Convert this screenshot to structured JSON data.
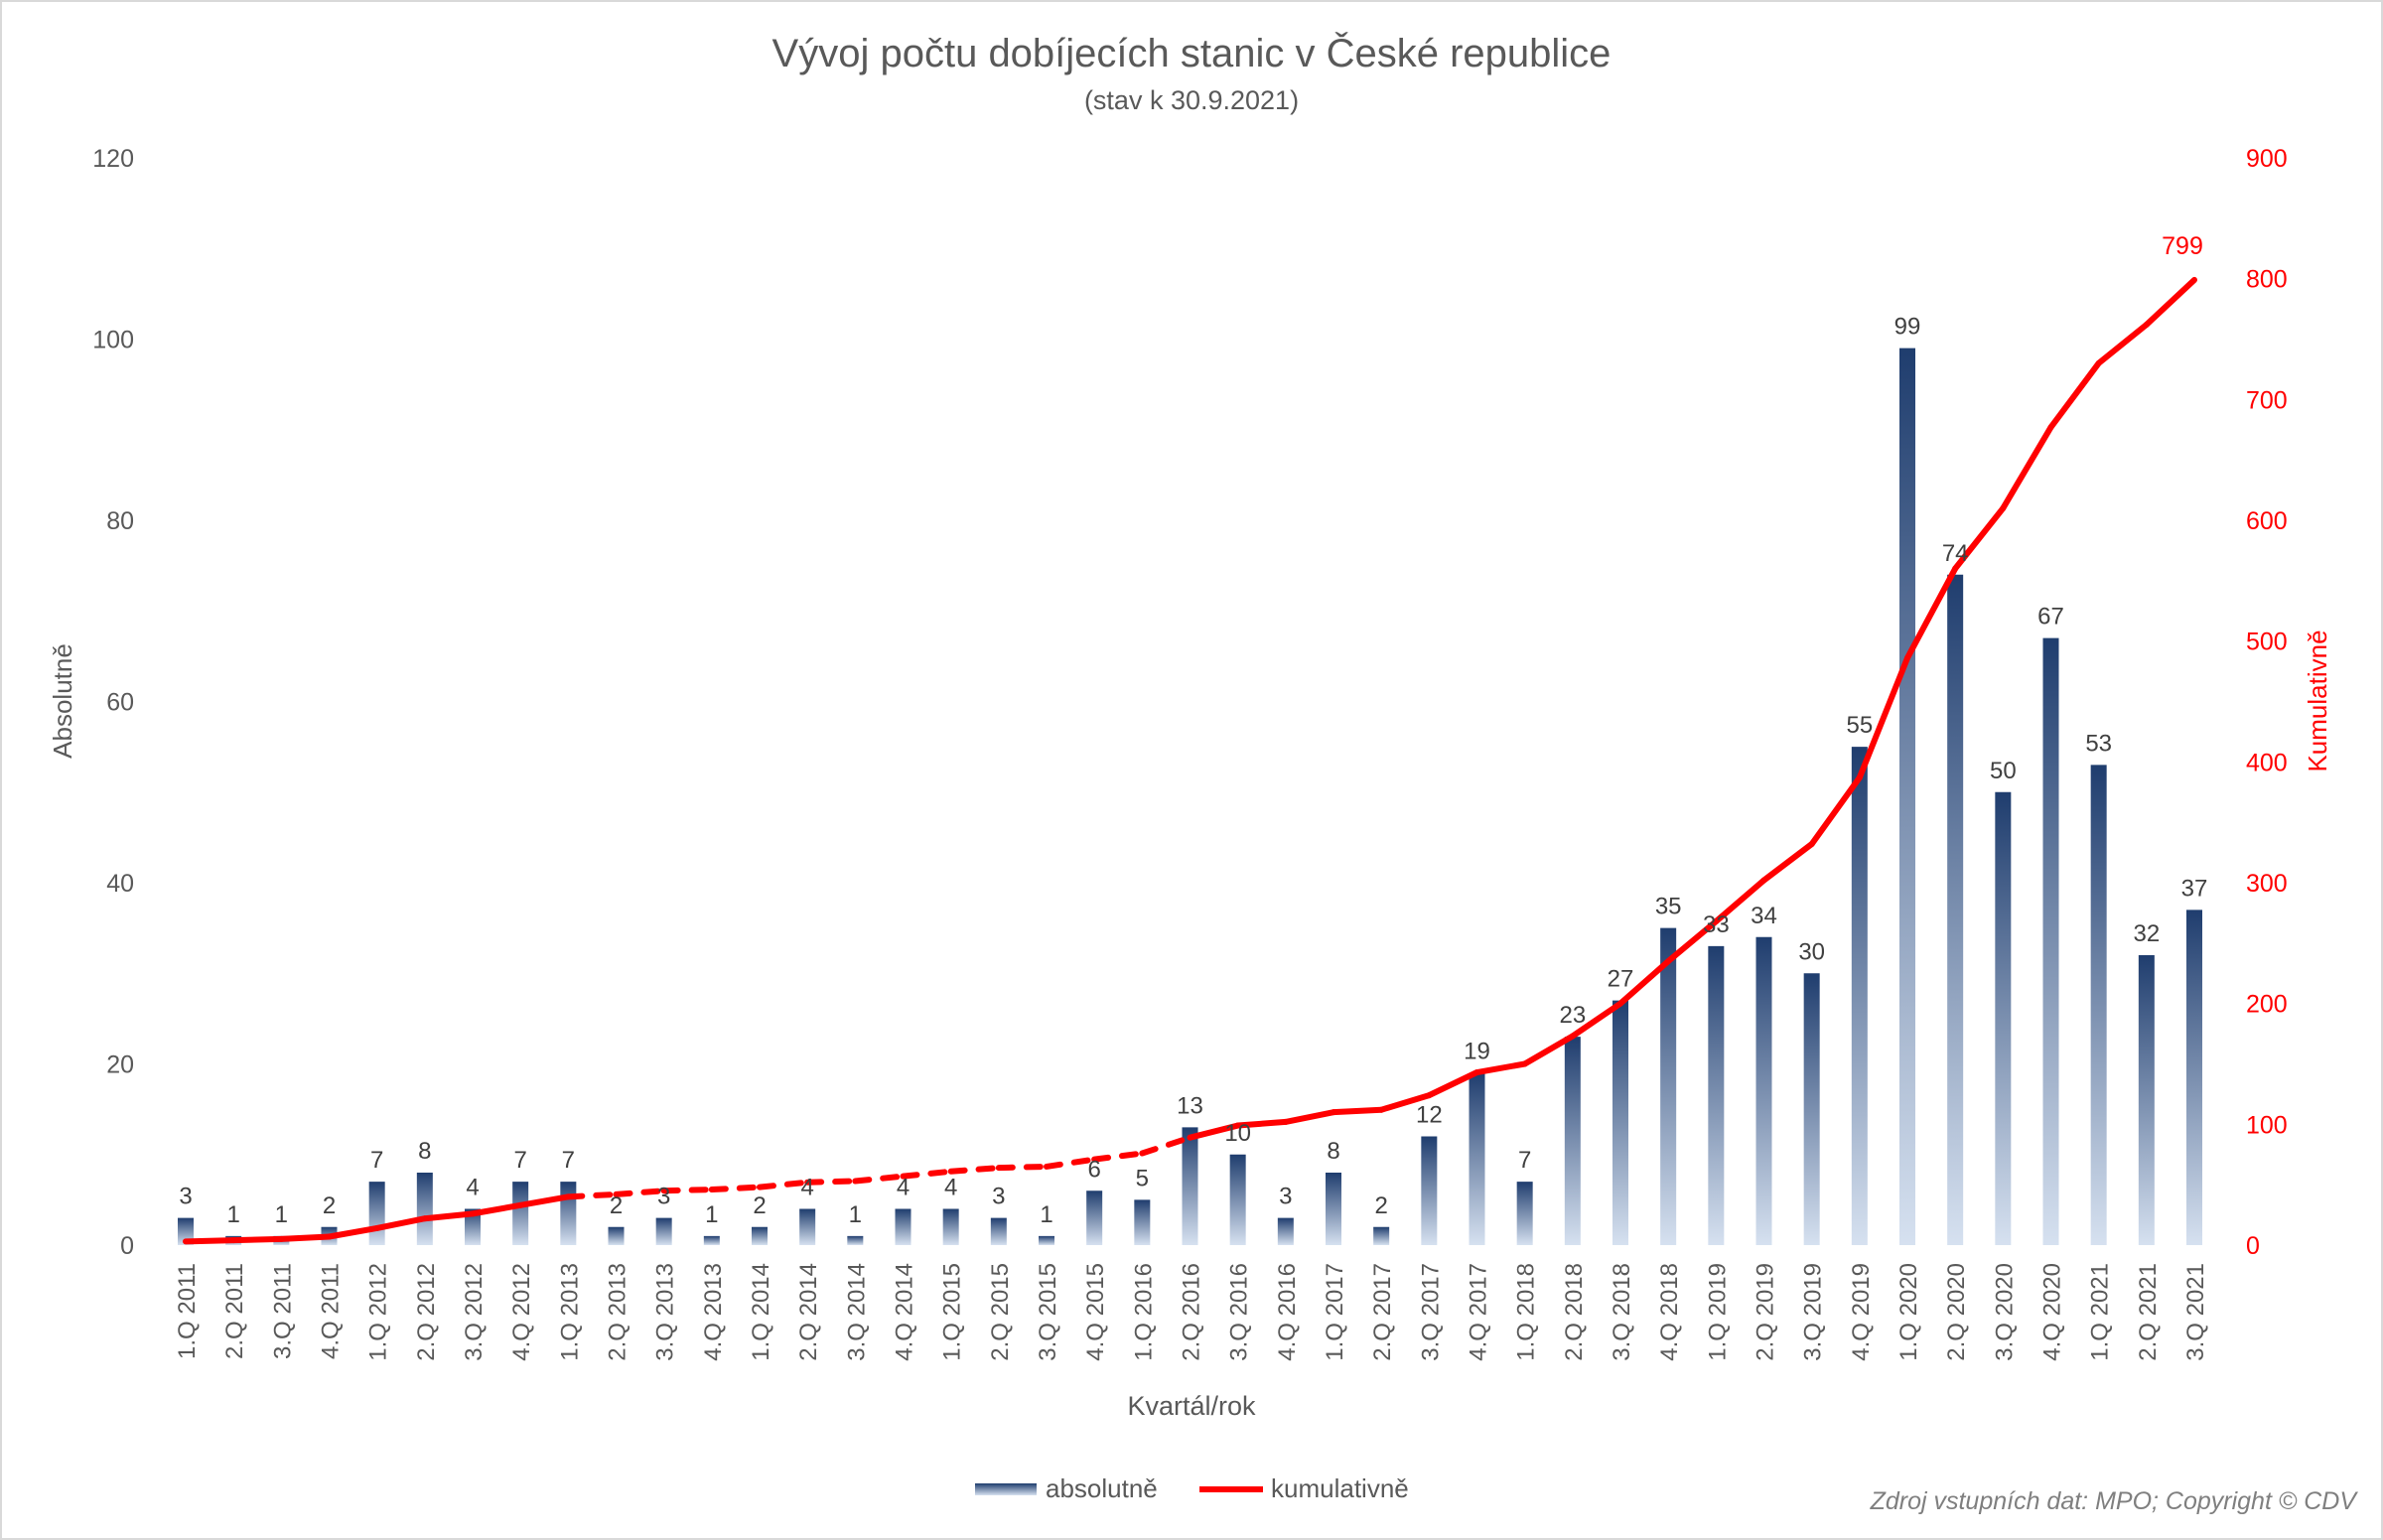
{
  "chart_data": {
    "type": "bar+line",
    "title": "Vývoj počtu dobíjecích stanic v České republice",
    "subtitle": "(stav k 30.9.2021)",
    "xlabel": "Kvartál/rok",
    "ylabel": "Absolutně",
    "y2label": "Kumulativně",
    "ylim": [
      0,
      120
    ],
    "y2lim": [
      0,
      900
    ],
    "yticks": [
      0,
      20,
      40,
      60,
      80,
      100,
      120
    ],
    "y2ticks": [
      0,
      100,
      200,
      300,
      400,
      500,
      600,
      700,
      800,
      900
    ],
    "categories": [
      "1.Q 2011",
      "2.Q 2011",
      "3.Q 2011",
      "4.Q 2011",
      "1.Q 2012",
      "2.Q 2012",
      "3.Q 2012",
      "4.Q 2012",
      "1.Q 2013",
      "2.Q 2013",
      "3.Q 2013",
      "4.Q 2013",
      "1.Q 2014",
      "2.Q 2014",
      "3.Q 2014",
      "4.Q 2014",
      "1.Q 2015",
      "2.Q 2015",
      "3.Q 2015",
      "4.Q 2015",
      "1.Q 2016",
      "2.Q 2016",
      "3.Q 2016",
      "4.Q 2016",
      "1.Q 2017",
      "2.Q 2017",
      "3.Q 2017",
      "4.Q 2017",
      "1.Q 2018",
      "2.Q 2018",
      "3.Q 2018",
      "4.Q 2018",
      "1.Q 2019",
      "2.Q 2019",
      "3.Q 2019",
      "4.Q 2019",
      "1.Q 2020",
      "2.Q 2020",
      "3.Q 2020",
      "4.Q 2020",
      "1.Q 2021",
      "2.Q 2021",
      "3.Q 2021"
    ],
    "series": [
      {
        "name": "absolutně",
        "type": "bar",
        "axis": "left",
        "color": "#1f3d6e",
        "values": [
          3,
          1,
          1,
          2,
          7,
          8,
          4,
          7,
          7,
          2,
          3,
          1,
          2,
          4,
          1,
          4,
          4,
          3,
          1,
          6,
          5,
          13,
          10,
          3,
          8,
          2,
          12,
          19,
          7,
          23,
          27,
          35,
          33,
          34,
          30,
          55,
          99,
          74,
          50,
          67,
          53,
          32,
          37
        ]
      },
      {
        "name": "kumulativně",
        "type": "line",
        "axis": "right",
        "color": "#ff0000",
        "last_label": "799"
      }
    ],
    "legend": "bottom",
    "grid": false
  },
  "footer": {
    "source": "Zdroj vstupních dat: MPO; Copyright © CDV"
  },
  "colors": {
    "axis_right": "#ff0000",
    "text": "#595959"
  }
}
